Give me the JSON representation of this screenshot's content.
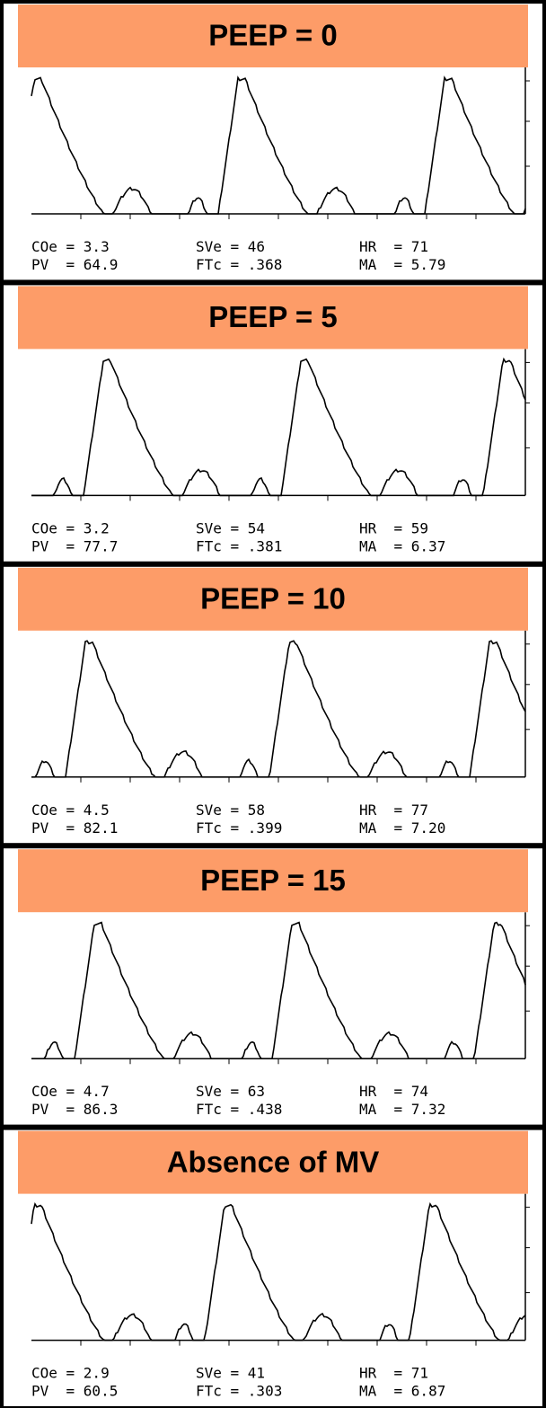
{
  "panels": [
    {
      "title": "PEEP = 0",
      "readings": [
        [
          "COe = 3.3",
          "SVe = 46",
          "HR  = 71"
        ],
        [
          "PV  = 64.9",
          "FTc = .368",
          "MA  = 5.79"
        ]
      ]
    },
    {
      "title": "PEEP = 5",
      "readings": [
        [
          "COe = 3.2",
          "SVe = 54",
          "HR  = 59"
        ],
        [
          "PV  = 77.7",
          "FTc = .381",
          "MA  = 6.37"
        ]
      ]
    },
    {
      "title": "PEEP  = 10",
      "readings": [
        [
          "COe = 4.5",
          "SVe = 58",
          "HR  = 77"
        ],
        [
          "PV  = 82.1",
          "FTc = .399",
          "MA  = 7.20"
        ]
      ]
    },
    {
      "title": "PEEP = 15",
      "readings": [
        [
          "COe = 4.7",
          "SVe = 63",
          "HR  = 74"
        ],
        [
          "PV  = 86.3",
          "FTc = .438",
          "MA  = 7.32"
        ]
      ]
    },
    {
      "title": "Absence of MV",
      "readings": [
        [
          "COe = 2.9",
          "SVe = 41",
          "HR  = 71"
        ],
        [
          "PV  = 60.5",
          "FTc = .303",
          "MA  = 6.87"
        ]
      ]
    }
  ]
}
